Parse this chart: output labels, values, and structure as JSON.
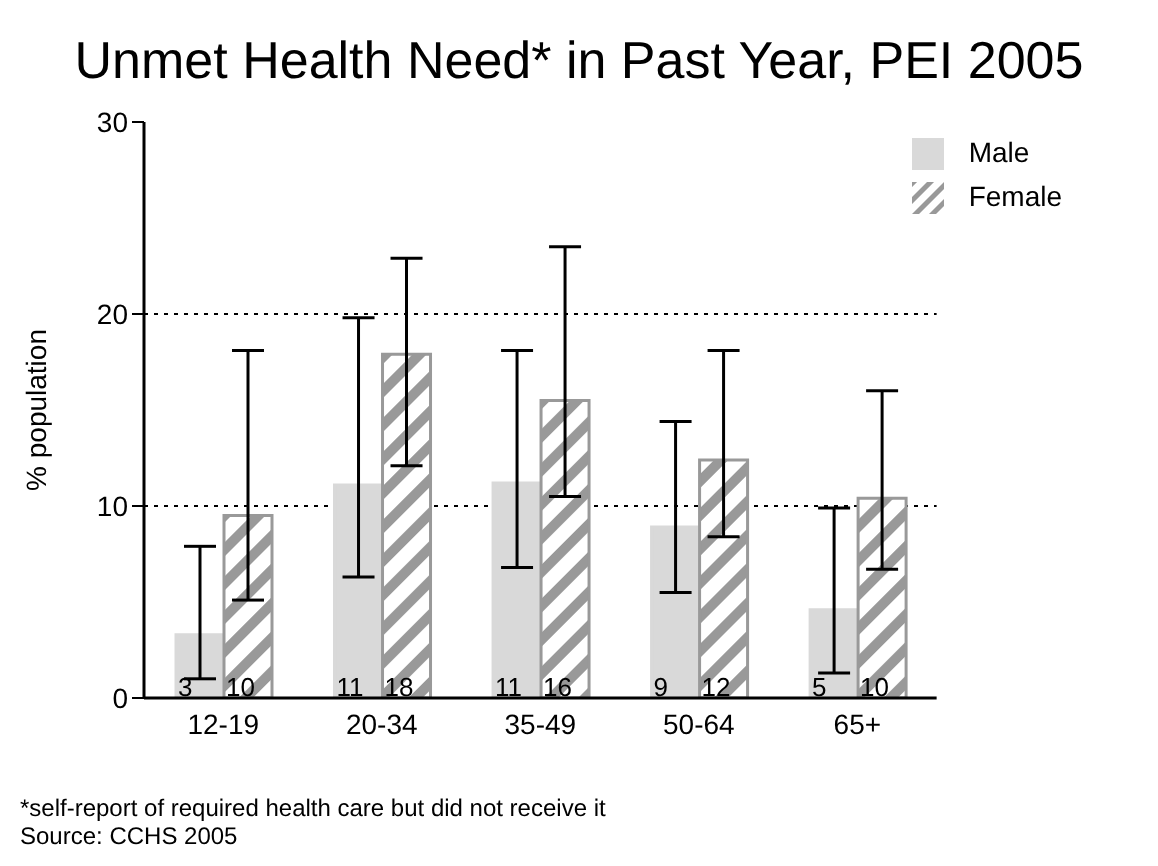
{
  "chart_data": {
    "type": "bar",
    "title": "Unmet Health Need* in Past Year, PEI 2005",
    "ylabel": "% population",
    "categories": [
      "12-19",
      "20-34",
      "35-49",
      "50-64",
      "65+"
    ],
    "series": [
      {
        "name": "Male",
        "color": "#d9d9d9",
        "values": [
          3.3,
          11.1,
          11.2,
          8.9,
          4.6
        ],
        "errors": [
          [
            1.0,
            7.9
          ],
          [
            6.3,
            19.8
          ],
          [
            6.8,
            18.1
          ],
          [
            5.5,
            14.4
          ],
          [
            1.3,
            9.9
          ]
        ],
        "value_labels": [
          "3",
          "11",
          "11",
          "9",
          "5"
        ]
      },
      {
        "name": "Female",
        "color": "#999999",
        "values": [
          9.5,
          17.9,
          15.5,
          12.4,
          10.4
        ],
        "errors": [
          [
            5.1,
            18.1
          ],
          [
            12.1,
            22.9
          ],
          [
            10.5,
            23.5
          ],
          [
            8.4,
            18.1
          ],
          [
            6.7,
            16.0
          ]
        ],
        "value_labels": [
          "10",
          "18",
          "16",
          "12",
          "10"
        ]
      }
    ],
    "ylim": [
      0,
      30
    ],
    "yticks": [
      0,
      10,
      20,
      30
    ],
    "grid": "y",
    "legend": "top right",
    "annotations": [
      "*self-report of required health care but did not receive it",
      "Source: CCHS 2005"
    ]
  }
}
